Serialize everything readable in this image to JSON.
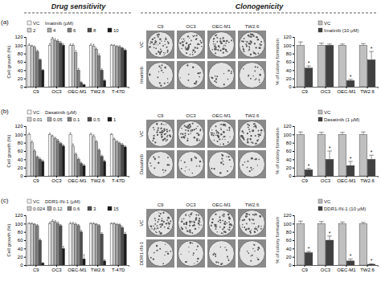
{
  "headers": [
    "Drug sensitivity",
    "Clonogenicity"
  ],
  "panels": [
    {
      "label": "(a)",
      "plate_columns": [
        "C9",
        "OC3",
        "OEC-M1",
        "TW2.6"
      ],
      "plate_rows": [
        "VC",
        "Imatinib"
      ]
    },
    {
      "label": "(b)",
      "plate_columns": [
        "C9",
        "OC3",
        "OEC-M1",
        "TW2.6"
      ],
      "plate_rows": [
        "VC",
        "Dasatinib"
      ]
    },
    {
      "label": "(c)",
      "plate_columns": [
        "C9",
        "OC3",
        "OEC-M1",
        "TW2.6"
      ],
      "plate_rows": [
        "VC",
        "DDR1-IN-1"
      ]
    }
  ],
  "chart_data": [
    {
      "type": "bar",
      "y_label": "Cell growth (%)",
      "legend": "top",
      "legend_title": "Imatinib (μM)",
      "categories": [
        "C9",
        "OC3",
        "OEC-M1",
        "TW2.6",
        "T-47D"
      ],
      "ylim": [
        0,
        120
      ],
      "yticks": [
        0,
        20,
        40,
        60,
        80,
        100,
        120
      ],
      "series": [
        {
          "name": "VC",
          "color": "#f0f0f0",
          "values": [
            100,
            100,
            100,
            100,
            100
          ],
          "errors": [
            3,
            4,
            3,
            3,
            2
          ]
        },
        {
          "name": "2",
          "color": "#cccccc",
          "values": [
            98,
            115,
            100,
            98,
            99
          ],
          "errors": [
            2,
            4,
            3,
            4,
            2
          ]
        },
        {
          "name": "4",
          "color": "#a6a6a6",
          "values": [
            95,
            112,
            82,
            90,
            97
          ],
          "errors": [
            3,
            4,
            5,
            3,
            2
          ]
        },
        {
          "name": "6",
          "color": "#7f7f7f",
          "values": [
            85,
            110,
            40,
            75,
            96
          ],
          "errors": [
            3,
            3,
            4,
            4,
            3
          ]
        },
        {
          "name": "8",
          "color": "#4d4d4d",
          "values": [
            65,
            105,
            10,
            40,
            93
          ],
          "errors": [
            2,
            4,
            2,
            3,
            2
          ]
        },
        {
          "name": "10",
          "color": "#1a1a1a",
          "values": [
            40,
            100,
            5,
            15,
            88
          ],
          "errors": [
            2,
            3,
            1,
            2,
            3
          ]
        }
      ]
    },
    {
      "type": "bar",
      "y_label": "% of colony formation",
      "legend": "top",
      "categories": [
        "C9",
        "OC3",
        "OEC-M1",
        "TW2.6"
      ],
      "ylim": [
        0,
        120
      ],
      "yticks": [
        0,
        20,
        40,
        60,
        80,
        100,
        120
      ],
      "series": [
        {
          "name": "VC",
          "color": "#bfbfbf",
          "values": [
            100,
            100,
            100,
            100
          ],
          "errors": [
            8,
            5,
            3,
            4
          ]
        },
        {
          "name": "Imatinib (10 μM)",
          "color": "#404040",
          "values": [
            45,
            100,
            15,
            65
          ],
          "errors": [
            5,
            3,
            3,
            20
          ],
          "annotations": [
            "*",
            null,
            "*",
            "*"
          ]
        }
      ]
    },
    {
      "type": "bar",
      "y_label": "Cell growth (%)",
      "legend": "top",
      "legend_title": "Dasatinib (μM)",
      "categories": [
        "C9",
        "OC3",
        "OEC-M1",
        "TW2.6",
        "T-47D"
      ],
      "ylim": [
        0,
        120
      ],
      "yticks": [
        0,
        20,
        40,
        60,
        80,
        100,
        120
      ],
      "series": [
        {
          "name": "VC",
          "color": "#f0f0f0",
          "values": [
            100,
            100,
            100,
            100,
            100
          ],
          "errors": [
            3,
            3,
            4,
            3,
            2
          ]
        },
        {
          "name": "0.01",
          "color": "#cccccc",
          "values": [
            80,
            95,
            72,
            95,
            88
          ],
          "errors": [
            4,
            3,
            5,
            4,
            3
          ]
        },
        {
          "name": "0.05",
          "color": "#a6a6a6",
          "values": [
            60,
            90,
            52,
            82,
            82
          ],
          "errors": [
            3,
            3,
            3,
            3,
            3
          ]
        },
        {
          "name": "0.1",
          "color": "#7f7f7f",
          "values": [
            45,
            85,
            40,
            62,
            78
          ],
          "errors": [
            3,
            3,
            3,
            3,
            3
          ]
        },
        {
          "name": "0.5",
          "color": "#4d4d4d",
          "values": [
            40,
            78,
            30,
            47,
            75
          ],
          "errors": [
            3,
            3,
            3,
            3,
            3
          ]
        },
        {
          "name": "1",
          "color": "#1a1a1a",
          "values": [
            35,
            72,
            25,
            35,
            70
          ],
          "errors": [
            3,
            3,
            3,
            3,
            3
          ]
        }
      ]
    },
    {
      "type": "bar",
      "y_label": "% of colony formation",
      "legend": "top",
      "categories": [
        "C9",
        "OC3",
        "OEC-M1",
        "TW2.6"
      ],
      "ylim": [
        0,
        120
      ],
      "yticks": [
        0,
        20,
        40,
        60,
        80,
        100,
        120
      ],
      "series": [
        {
          "name": "VC",
          "color": "#bfbfbf",
          "values": [
            100,
            100,
            100,
            100
          ],
          "errors": [
            6,
            5,
            5,
            6
          ]
        },
        {
          "name": "Dasatinib (1 μM)",
          "color": "#404040",
          "values": [
            15,
            40,
            25,
            40
          ],
          "errors": [
            3,
            20,
            10,
            10
          ],
          "annotations": [
            "*",
            "*",
            "*",
            "*"
          ]
        }
      ]
    },
    {
      "type": "bar",
      "y_label": "Cell growth (%)",
      "legend": "top",
      "legend_title": "DDR1-IN-1 (μM)",
      "categories": [
        "C9",
        "OC3",
        "OEC-M1",
        "TW2.6",
        "T-47D"
      ],
      "ylim": [
        0,
        120
      ],
      "yticks": [
        0,
        20,
        40,
        60,
        80,
        100,
        120
      ],
      "series": [
        {
          "name": "VC",
          "color": "#f0f0f0",
          "values": [
            100,
            100,
            100,
            100,
            100
          ],
          "errors": [
            2,
            3,
            3,
            2,
            2
          ]
        },
        {
          "name": "0.024",
          "color": "#cccccc",
          "values": [
            100,
            105,
            100,
            100,
            100
          ],
          "errors": [
            2,
            4,
            3,
            2,
            2
          ]
        },
        {
          "name": "0.12",
          "color": "#a6a6a6",
          "values": [
            98,
            104,
            98,
            98,
            98
          ],
          "errors": [
            2,
            3,
            3,
            2,
            2
          ]
        },
        {
          "name": "0.6",
          "color": "#7f7f7f",
          "values": [
            95,
            100,
            95,
            95,
            97
          ],
          "errors": [
            3,
            4,
            3,
            3,
            2
          ]
        },
        {
          "name": "3",
          "color": "#4d4d4d",
          "values": [
            60,
            95,
            80,
            75,
            90
          ],
          "errors": [
            3,
            3,
            4,
            3,
            3
          ]
        },
        {
          "name": "15",
          "color": "#1a1a1a",
          "values": [
            5,
            40,
            15,
            10,
            75
          ],
          "errors": [
            1,
            5,
            10,
            3,
            4
          ]
        }
      ]
    },
    {
      "type": "bar",
      "y_label": "% of colony formation",
      "legend": "top",
      "categories": [
        "C9",
        "OC3",
        "OEC-M1",
        "TW2.6"
      ],
      "ylim": [
        0,
        120
      ],
      "yticks": [
        0,
        20,
        40,
        60,
        80,
        100,
        120
      ],
      "series": [
        {
          "name": "VC",
          "color": "#bfbfbf",
          "values": [
            100,
            100,
            100,
            100
          ],
          "errors": [
            6,
            5,
            4,
            3
          ]
        },
        {
          "name": "DDR1-IN-1 (10 μM)",
          "color": "#404040",
          "values": [
            30,
            60,
            10,
            2
          ],
          "errors": [
            3,
            10,
            5,
            1
          ],
          "annotations": [
            "*",
            "*",
            "*",
            "*"
          ]
        }
      ]
    }
  ]
}
